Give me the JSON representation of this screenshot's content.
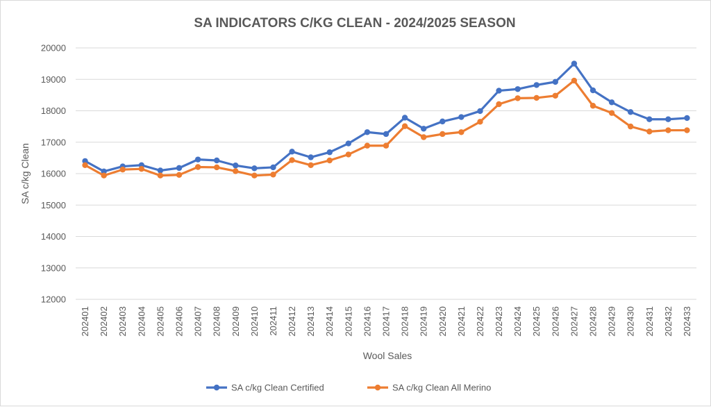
{
  "chart_data": {
    "type": "line",
    "title": "SA INDICATORS C/KG CLEAN - 2024/2025 SEASON",
    "xlabel": "Wool Sales",
    "ylabel": "SA c/kg Clean",
    "ylim": [
      12000,
      20000
    ],
    "yticks": [
      12000,
      13000,
      14000,
      15000,
      16000,
      17000,
      18000,
      19000,
      20000
    ],
    "grid": true,
    "legend_position": "bottom",
    "categories": [
      "202401",
      "202402",
      "202403",
      "202404",
      "202405",
      "202406",
      "202407",
      "202408",
      "202409",
      "202410",
      "202411",
      "202412",
      "202413",
      "202414",
      "202415",
      "202416",
      "202417",
      "202418",
      "202419",
      "202420",
      "202421",
      "202422",
      "202423",
      "202424",
      "202425",
      "202426",
      "202427",
      "202428",
      "202429",
      "202430",
      "202431",
      "202432",
      "202433"
    ],
    "series": [
      {
        "name": "SA c/kg Clean Certified",
        "color": "#4472C4",
        "values": [
          16400,
          16070,
          16230,
          16270,
          16100,
          16180,
          16450,
          16420,
          16260,
          16170,
          16200,
          16700,
          16520,
          16680,
          16960,
          17320,
          17260,
          17780,
          17430,
          17660,
          17800,
          17990,
          18640,
          18690,
          18820,
          18920,
          19500,
          18650,
          18270,
          17960,
          17730,
          17730,
          17770
        ]
      },
      {
        "name": "SA c/kg Clean All Merino",
        "color": "#ED7D31",
        "values": [
          16270,
          15940,
          16130,
          16150,
          15940,
          15960,
          16210,
          16200,
          16080,
          15940,
          15970,
          16430,
          16270,
          16420,
          16610,
          16890,
          16890,
          17510,
          17160,
          17260,
          17320,
          17650,
          18210,
          18400,
          18410,
          18480,
          18960,
          18160,
          17930,
          17500,
          17340,
          17380,
          17380
        ]
      }
    ]
  }
}
